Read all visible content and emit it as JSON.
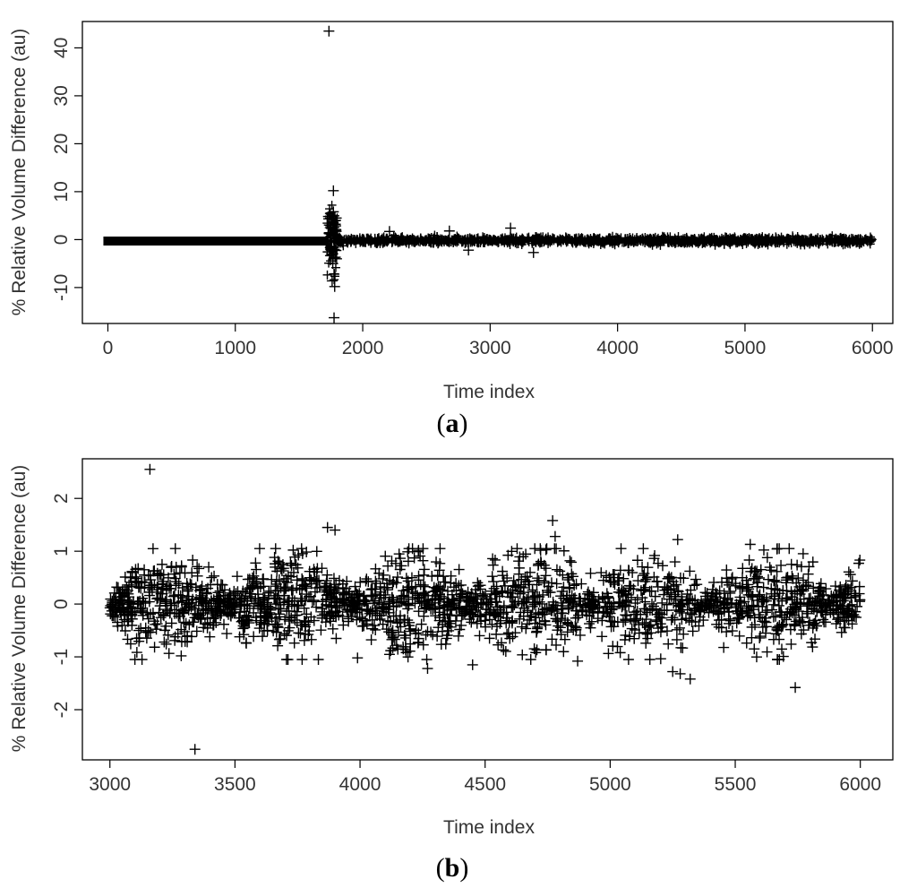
{
  "chart_data": [
    {
      "type": "scatter",
      "marker": "+",
      "panel_label": "a",
      "xlabel": "Time index",
      "ylabel": "% Relative Volume Difference (au)",
      "xlim": [
        -200,
        6160
      ],
      "ylim": [
        -17.5,
        45.5
      ],
      "xticks": [
        0,
        1000,
        2000,
        3000,
        4000,
        5000,
        6000
      ],
      "yticks": [
        -10,
        0,
        10,
        20,
        30,
        40
      ],
      "xtick_labels": [
        "0",
        "1000",
        "2000",
        "3000",
        "4000",
        "5000",
        "6000"
      ],
      "ytick_labels": [
        "-10",
        "0",
        "10",
        "20",
        "30",
        "40"
      ],
      "grid": false,
      "series": [
        {
          "description_of_dense_band": "points from 0 to 1700 all near 0",
          "dense_band": {
            "x_range": [
              0,
              1700
            ],
            "y": -0.3
          },
          "outliers": [
            {
              "x": 1735,
              "y": 43.5
            },
            {
              "x": 1770,
              "y": 10.2
            },
            {
              "x": 1770,
              "y": 5.8
            },
            {
              "x": 1760,
              "y": 4.2
            },
            {
              "x": 1780,
              "y": 3.2
            },
            {
              "x": 1745,
              "y": 2.5
            },
            {
              "x": 1790,
              "y": 2.0
            },
            {
              "x": 1755,
              "y": -3.0
            },
            {
              "x": 1765,
              "y": -5.0
            },
            {
              "x": 1775,
              "y": -7.2
            },
            {
              "x": 1760,
              "y": -8.6
            },
            {
              "x": 1780,
              "y": -9.8
            },
            {
              "x": 1775,
              "y": -16.3
            },
            {
              "x": 1750,
              "y": -1.8
            },
            {
              "x": 1795,
              "y": -4.0
            },
            {
              "x": 2210,
              "y": 1.7
            },
            {
              "x": 2680,
              "y": 1.8
            },
            {
              "x": 2830,
              "y": -2.2
            },
            {
              "x": 3160,
              "y": 2.4
            },
            {
              "x": 3340,
              "y": -2.7
            }
          ],
          "noise_band": {
            "x_range": [
              1800,
              6000
            ],
            "y_range": [
              -1.3,
              1.3
            ]
          }
        }
      ]
    },
    {
      "type": "scatter",
      "marker": "+",
      "panel_label": "b",
      "xlabel": "Time index",
      "ylabel": "% Relative Volume Difference (au)",
      "xlim": [
        2890,
        6130
      ],
      "ylim": [
        -2.95,
        2.75
      ],
      "xticks": [
        3000,
        3500,
        4000,
        4500,
        5000,
        5500,
        6000
      ],
      "yticks": [
        -2,
        -1,
        0,
        1,
        2
      ],
      "xtick_labels": [
        "3000",
        "3500",
        "4000",
        "4500",
        "5000",
        "5500",
        "6000"
      ],
      "ytick_labels": [
        "-2",
        "-1",
        "0",
        "1",
        "2"
      ],
      "grid": false,
      "series": [
        {
          "x_range": [
            3000,
            6000
          ],
          "outliers": [
            {
              "x": 3160,
              "y": 2.55
            },
            {
              "x": 3340,
              "y": -2.75
            },
            {
              "x": 3870,
              "y": 1.45
            },
            {
              "x": 3900,
              "y": 1.4
            },
            {
              "x": 4320,
              "y": 1.05
            },
            {
              "x": 4770,
              "y": 1.58
            },
            {
              "x": 4780,
              "y": 1.28
            },
            {
              "x": 5270,
              "y": 1.22
            },
            {
              "x": 5250,
              "y": -1.28
            },
            {
              "x": 5280,
              "y": -1.32
            },
            {
              "x": 5320,
              "y": -1.42
            },
            {
              "x": 5560,
              "y": 1.13
            },
            {
              "x": 5740,
              "y": -1.58
            },
            {
              "x": 4270,
              "y": -1.22
            },
            {
              "x": 4450,
              "y": -1.15
            },
            {
              "x": 3990,
              "y": -1.02
            },
            {
              "x": 4870,
              "y": -1.08
            }
          ]
        }
      ]
    }
  ]
}
